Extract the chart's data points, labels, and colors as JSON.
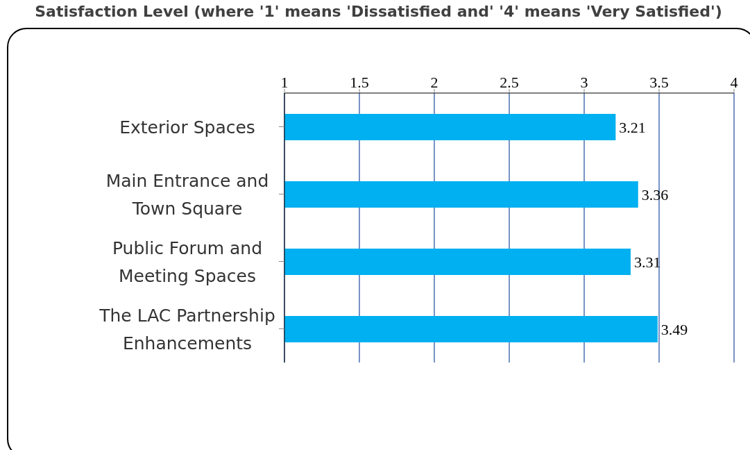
{
  "chart_data": {
    "type": "bar",
    "orientation": "horizontal",
    "title": "Satisfaction Level (where '1' means 'Dissatisfied and' '4' means 'Very Satisfied')",
    "categories": [
      "Exterior Spaces",
      "Main Entrance and Town Square",
      "Public Forum and Meeting Spaces",
      "The LAC Partnership Enhancements"
    ],
    "values": [
      3.21,
      3.36,
      3.31,
      3.49
    ],
    "color": "#00b0f0",
    "xlim": [
      1,
      4
    ],
    "xticks": [
      1,
      1.5,
      2,
      2.5,
      3,
      3.5,
      4
    ],
    "grid": "x",
    "data_labels": true
  }
}
